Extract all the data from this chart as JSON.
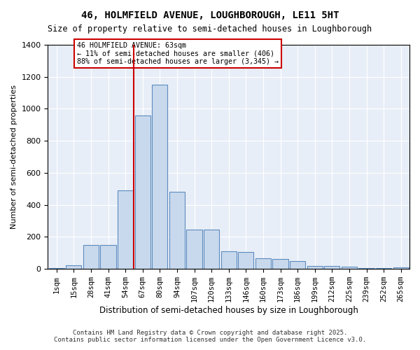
{
  "title": "46, HOLMFIELD AVENUE, LOUGHBOROUGH, LE11 5HT",
  "subtitle": "Size of property relative to semi-detached houses in Loughborough",
  "xlabel": "Distribution of semi-detached houses by size in Loughborough",
  "ylabel": "Number of semi-detached properties",
  "footer_line1": "Contains HM Land Registry data © Crown copyright and database right 2025.",
  "footer_line2": "Contains public sector information licensed under the Open Government Licence v3.0.",
  "annotation_title": "46 HOLMFIELD AVENUE: 63sqm",
  "annotation_line1": "← 11% of semi-detached houses are smaller (406)",
  "annotation_line2": "88% of semi-detached houses are larger (3,345) →",
  "property_size": 63,
  "categories": [
    "1sqm",
    "15sqm",
    "28sqm",
    "41sqm",
    "54sqm",
    "67sqm",
    "80sqm",
    "94sqm",
    "107sqm",
    "120sqm",
    "133sqm",
    "146sqm",
    "160sqm",
    "173sqm",
    "186sqm",
    "199sqm",
    "212sqm",
    "225sqm",
    "239sqm",
    "252sqm",
    "265sqm"
  ],
  "values": [
    5,
    25,
    150,
    150,
    490,
    960,
    1150,
    480,
    245,
    245,
    110,
    105,
    65,
    60,
    50,
    20,
    20,
    15,
    5,
    5,
    10
  ],
  "bar_color": "#c9d9ed",
  "bar_edge_color": "#5b8bc0",
  "red_line_color": "#cc0000",
  "annotation_box_color": "#cc0000",
  "background_color": "#e8eef7",
  "ylim": [
    0,
    1400
  ],
  "yticks": [
    0,
    200,
    400,
    600,
    800,
    1000,
    1200,
    1400
  ]
}
